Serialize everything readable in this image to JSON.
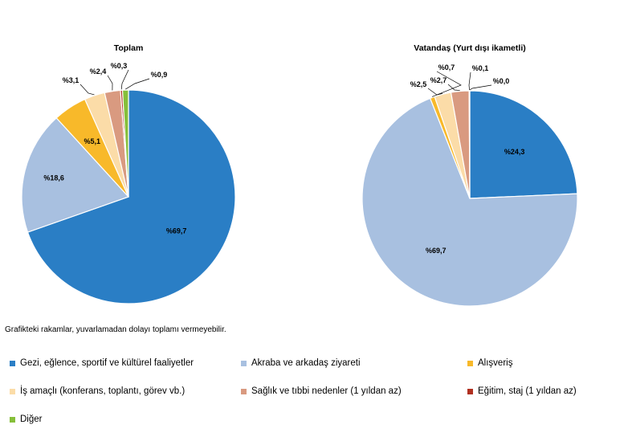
{
  "note": "Grafikteki rakamlar, yuvarlamadan dolayı toplamı vermeyebilir.",
  "categories": [
    {
      "name": "Gezi, eğlence, sportif ve kültürel faaliyetler",
      "color": "#2a7ec5"
    },
    {
      "name": "Akraba ve arkadaş ziyareti",
      "color": "#a8c0e0"
    },
    {
      "name": "Alışveriş",
      "color": "#f8b92a"
    },
    {
      "name": "İş amaçlı (konferans, toplantı, görev vb.)",
      "color": "#fbdca8"
    },
    {
      "name": "Sağlık ve tıbbi nedenler (1 yıldan az)",
      "color": "#d99a80"
    },
    {
      "name": "Eğitim, staj (1 yıldan az)",
      "color": "#b03020"
    },
    {
      "name": "Diğer",
      "color": "#86bf3a"
    }
  ],
  "chart_data": [
    {
      "type": "pie",
      "title": "Toplam",
      "values": [
        69.7,
        18.6,
        5.1,
        3.1,
        2.4,
        0.3,
        0.9
      ],
      "labels": [
        "%69,7",
        "%18,6",
        "%5,1",
        "%3,1",
        "%2,4",
        "%0,3",
        "%0,9"
      ]
    },
    {
      "type": "pie",
      "title": "Vatandaş (Yurt dışı ikametli)",
      "values": [
        24.3,
        69.7,
        0.7,
        2.5,
        2.7,
        0.1,
        0.0
      ],
      "labels": [
        "%24,3",
        "%69,7",
        "%0,7",
        "%2,5",
        "%2,7",
        "%0,1",
        "%0,0"
      ]
    }
  ]
}
